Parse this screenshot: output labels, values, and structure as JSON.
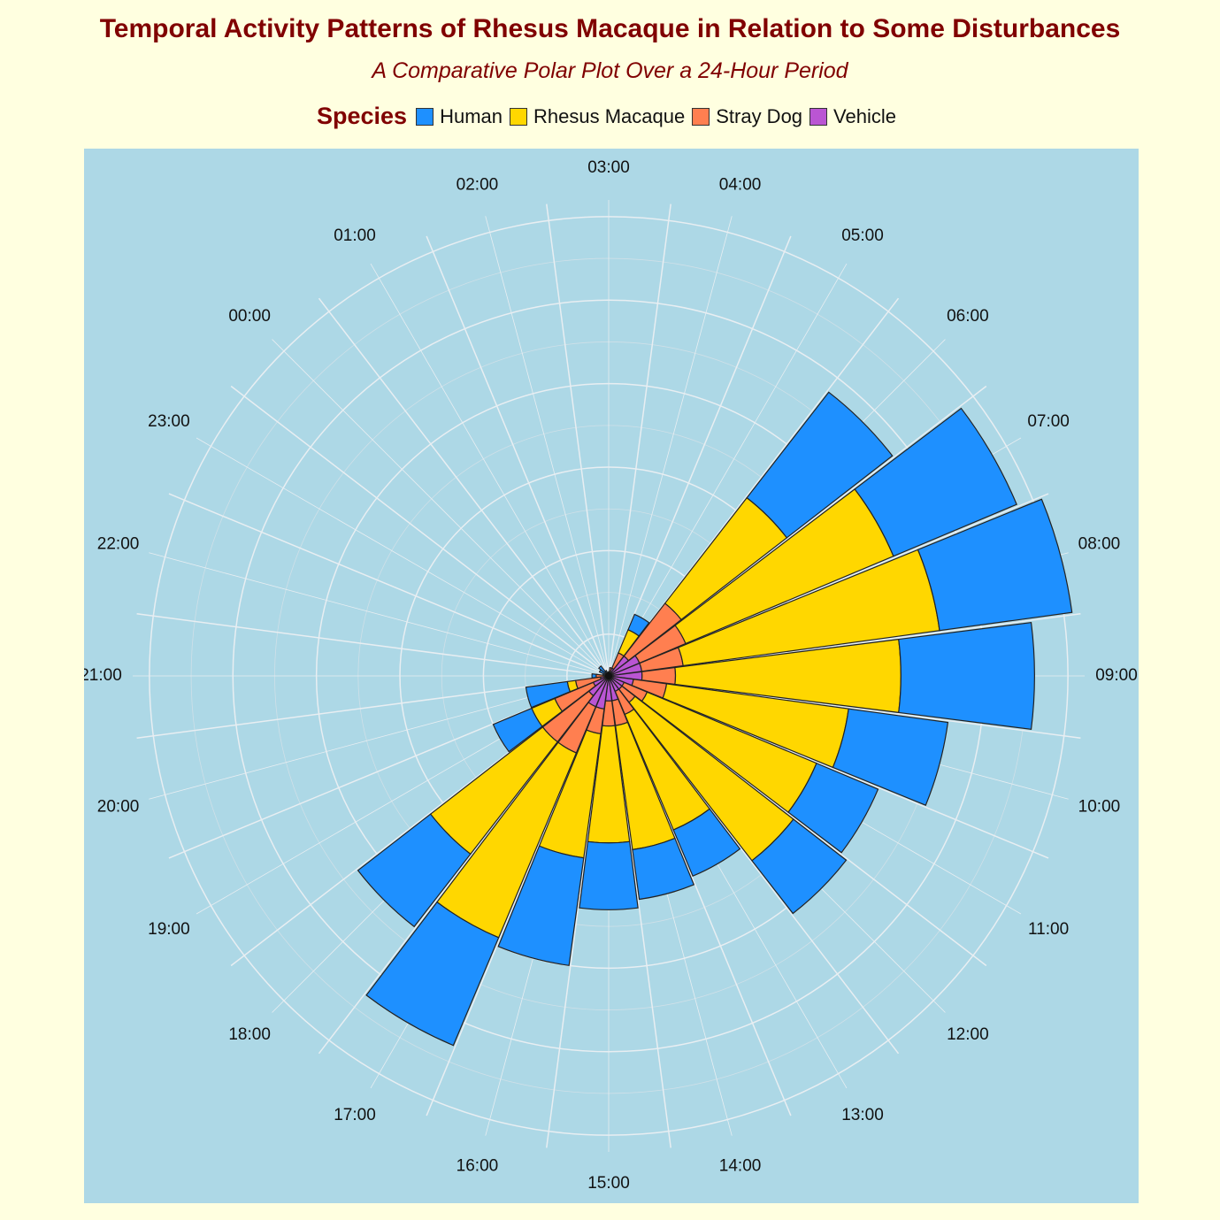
{
  "chart_data": {
    "type": "bar",
    "coord": "polar",
    "stacked": true,
    "title": "Temporal Activity Patterns of Rhesus Macaque in Relation to Some Disturbances",
    "subtitle": "A Comparative Polar Plot Over a 24-Hour Period",
    "legend": {
      "title": "Species",
      "position": "top"
    },
    "categories": [
      "00:00",
      "01:00",
      "02:00",
      "03:00",
      "04:00",
      "05:00",
      "06:00",
      "07:00",
      "08:00",
      "09:00",
      "10:00",
      "11:00",
      "12:00",
      "13:00",
      "14:00",
      "15:00",
      "16:00",
      "17:00",
      "18:00",
      "19:00",
      "20:00",
      "21:00",
      "22:00",
      "23:00"
    ],
    "series": [
      {
        "name": "Vehicle",
        "color": "#ba55d3",
        "values": [
          0.5,
          0.2,
          0.3,
          0.5,
          0.5,
          1,
          3,
          4,
          4,
          4,
          3,
          2,
          2,
          2,
          3,
          3,
          4,
          4,
          3,
          2,
          1,
          0.5,
          0.2,
          0.2
        ]
      },
      {
        "name": "Stray Dog",
        "color": "#ff7f50",
        "values": [
          0,
          0,
          0,
          0,
          0.5,
          2,
          8,
          6,
          5,
          4,
          4,
          3,
          2,
          3,
          3,
          3,
          3,
          6,
          7,
          5,
          3,
          1,
          0.2,
          0
        ]
      },
      {
        "name": "Rhesus Macaque",
        "color": "#ffd700",
        "values": [
          0,
          0,
          0,
          0,
          0,
          3,
          16,
          27,
          31,
          27,
          22,
          22,
          24,
          15,
          15,
          14,
          15,
          24,
          17,
          3,
          1,
          0,
          0,
          0
        ]
      },
      {
        "name": "Human",
        "color": "#1e90ff",
        "values": [
          1,
          0.5,
          0,
          0,
          0,
          2,
          16,
          16,
          16,
          16,
          12,
          8,
          8,
          6,
          6,
          8,
          13,
          14,
          11,
          5,
          5,
          0.5,
          0.3,
          1
        ]
      }
    ],
    "legend_order": [
      "Human",
      "Rhesus Macaque",
      "Stray Dog",
      "Vehicle"
    ],
    "ylim": [
      0,
      57
    ],
    "grid": true
  }
}
